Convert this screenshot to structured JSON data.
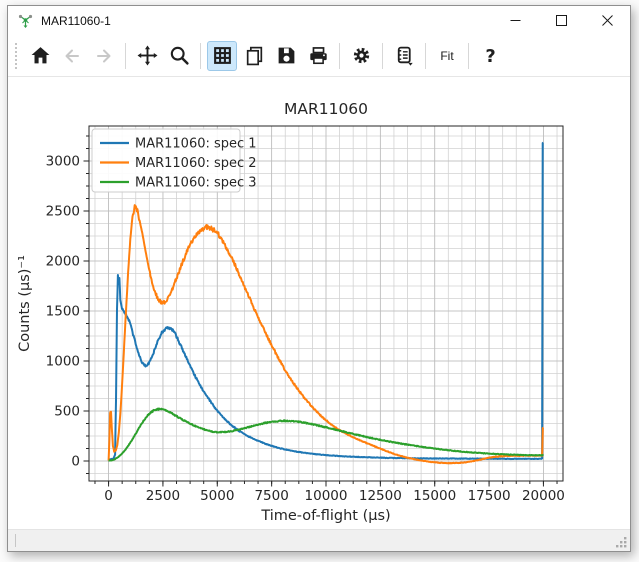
{
  "window": {
    "title": "MAR11060-1",
    "icon": "mantid-logo-icon",
    "controls": [
      {
        "name": "minimize",
        "icon": "minimize-icon"
      },
      {
        "name": "maximize",
        "icon": "maximize-icon"
      },
      {
        "name": "close",
        "icon": "close-icon"
      }
    ]
  },
  "toolbar": {
    "items": [
      {
        "type": "button",
        "name": "home",
        "icon": "home-icon",
        "enabled": true
      },
      {
        "type": "button",
        "name": "back",
        "icon": "back-arrow-icon",
        "enabled": false
      },
      {
        "type": "button",
        "name": "forward",
        "icon": "forward-arrow-icon",
        "enabled": false
      },
      {
        "type": "separator"
      },
      {
        "type": "button",
        "name": "pan",
        "icon": "pan-icon",
        "enabled": true
      },
      {
        "type": "button",
        "name": "zoom",
        "icon": "zoom-icon",
        "enabled": true
      },
      {
        "type": "separator"
      },
      {
        "type": "button",
        "name": "grid-toggle",
        "icon": "grid-icon",
        "enabled": true,
        "active": true
      },
      {
        "type": "button",
        "name": "copy",
        "icon": "copy-icon",
        "enabled": true
      },
      {
        "type": "button",
        "name": "save",
        "icon": "save-icon",
        "enabled": true
      },
      {
        "type": "button",
        "name": "print",
        "icon": "print-icon",
        "enabled": true
      },
      {
        "type": "separator"
      },
      {
        "type": "button",
        "name": "settings",
        "icon": "gear-icon",
        "enabled": true
      },
      {
        "type": "separator"
      },
      {
        "type": "button",
        "name": "generate-script",
        "icon": "script-icon",
        "enabled": true,
        "has_dropdown": true
      },
      {
        "type": "separator"
      },
      {
        "type": "button",
        "name": "fit",
        "label": "Fit",
        "enabled": true
      },
      {
        "type": "separator"
      },
      {
        "type": "button",
        "name": "help",
        "icon": "question-icon",
        "enabled": true
      }
    ]
  },
  "statusbar": {
    "grip_icon": "resize-grip-icon"
  },
  "chart_data": {
    "type": "line",
    "title": "MAR11060",
    "xlabel": "Time-of-flight (μs)",
    "ylabel": "Counts (μs)⁻¹",
    "xlim": [
      -900,
      20900
    ],
    "ylim": [
      -200,
      3350
    ],
    "xticks": [
      0,
      2500,
      5000,
      7500,
      10000,
      12500,
      15000,
      17500,
      20000
    ],
    "yticks": [
      0,
      500,
      1000,
      1500,
      2000,
      2500,
      3000
    ],
    "x_minor_step": 625,
    "y_minor_step": 125,
    "grid": true,
    "legend": {
      "position": "upper-left",
      "entries": [
        "MAR11060: spec 1",
        "MAR11060: spec 2",
        "MAR11060: spec 3"
      ]
    },
    "series": [
      {
        "name": "MAR11060: spec 1",
        "color": "#1f77b4",
        "points": [
          [
            0,
            15
          ],
          [
            200,
            20
          ],
          [
            300,
            60
          ],
          [
            340,
            600
          ],
          [
            390,
            1520
          ],
          [
            430,
            1860
          ],
          [
            465,
            1770
          ],
          [
            500,
            1830
          ],
          [
            540,
            1610
          ],
          [
            620,
            1520
          ],
          [
            700,
            1490
          ],
          [
            800,
            1465
          ],
          [
            900,
            1430
          ],
          [
            1000,
            1370
          ],
          [
            1100,
            1290
          ],
          [
            1250,
            1165
          ],
          [
            1400,
            1060
          ],
          [
            1550,
            985
          ],
          [
            1700,
            952
          ],
          [
            1850,
            975
          ],
          [
            2000,
            1040
          ],
          [
            2150,
            1130
          ],
          [
            2300,
            1220
          ],
          [
            2450,
            1282
          ],
          [
            2600,
            1318
          ],
          [
            2750,
            1332
          ],
          [
            2900,
            1320
          ],
          [
            3050,
            1278
          ],
          [
            3200,
            1212
          ],
          [
            3400,
            1118
          ],
          [
            3600,
            1020
          ],
          [
            3800,
            928
          ],
          [
            4000,
            840
          ],
          [
            4250,
            742
          ],
          [
            4500,
            655
          ],
          [
            4750,
            575
          ],
          [
            5000,
            500
          ],
          [
            5300,
            428
          ],
          [
            5600,
            368
          ],
          [
            6000,
            300
          ],
          [
            6400,
            250
          ],
          [
            6800,
            208
          ],
          [
            7200,
            173
          ],
          [
            7600,
            144
          ],
          [
            8000,
            121
          ],
          [
            8500,
            99
          ],
          [
            9000,
            82
          ],
          [
            9500,
            69
          ],
          [
            10000,
            59
          ],
          [
            10500,
            51
          ],
          [
            11000,
            45
          ],
          [
            11500,
            40
          ],
          [
            12000,
            36
          ],
          [
            12500,
            33
          ],
          [
            13000,
            30
          ],
          [
            14000,
            27
          ],
          [
            15000,
            25
          ],
          [
            16000,
            24
          ],
          [
            17000,
            23
          ],
          [
            18000,
            22
          ],
          [
            19000,
            22
          ],
          [
            19940,
            22
          ],
          [
            19965,
            3180
          ],
          [
            20000,
            3185
          ]
        ]
      },
      {
        "name": "MAR11060: spec 2",
        "color": "#ff7f0e",
        "points": [
          [
            0,
            5
          ],
          [
            40,
            210
          ],
          [
            70,
            480
          ],
          [
            110,
            490
          ],
          [
            150,
            330
          ],
          [
            200,
            150
          ],
          [
            260,
            95
          ],
          [
            330,
            105
          ],
          [
            400,
            162
          ],
          [
            470,
            282
          ],
          [
            540,
            470
          ],
          [
            620,
            750
          ],
          [
            700,
            1080
          ],
          [
            800,
            1500
          ],
          [
            900,
            1885
          ],
          [
            1000,
            2220
          ],
          [
            1100,
            2445
          ],
          [
            1200,
            2540
          ],
          [
            1300,
            2520
          ],
          [
            1400,
            2430
          ],
          [
            1550,
            2280
          ],
          [
            1700,
            2100
          ],
          [
            1850,
            1930
          ],
          [
            2000,
            1790
          ],
          [
            2150,
            1680
          ],
          [
            2300,
            1612
          ],
          [
            2450,
            1580
          ],
          [
            2600,
            1586
          ],
          [
            2750,
            1630
          ],
          [
            2900,
            1700
          ],
          [
            3100,
            1812
          ],
          [
            3300,
            1930
          ],
          [
            3500,
            2042
          ],
          [
            3700,
            2140
          ],
          [
            3900,
            2222
          ],
          [
            4100,
            2284
          ],
          [
            4300,
            2320
          ],
          [
            4500,
            2336
          ],
          [
            4700,
            2330
          ],
          [
            4900,
            2302
          ],
          [
            5100,
            2252
          ],
          [
            5300,
            2182
          ],
          [
            5500,
            2100
          ],
          [
            5750,
            1990
          ],
          [
            6000,
            1868
          ],
          [
            6300,
            1720
          ],
          [
            6600,
            1572
          ],
          [
            7000,
            1380
          ],
          [
            7400,
            1200
          ],
          [
            7800,
            1032
          ],
          [
            8200,
            880
          ],
          [
            8600,
            748
          ],
          [
            9000,
            632
          ],
          [
            9400,
            532
          ],
          [
            9800,
            445
          ],
          [
            10200,
            372
          ],
          [
            10700,
            298
          ],
          [
            11200,
            242
          ],
          [
            11700,
            194
          ],
          [
            12200,
            150
          ],
          [
            12700,
            106
          ],
          [
            13200,
            66
          ],
          [
            13700,
            34
          ],
          [
            14200,
            12
          ],
          [
            14700,
            -6
          ],
          [
            15200,
            -18
          ],
          [
            15700,
            -22
          ],
          [
            16200,
            -18
          ],
          [
            16700,
            -5
          ],
          [
            17100,
            14
          ],
          [
            17500,
            34
          ],
          [
            18000,
            47
          ],
          [
            18500,
            52
          ],
          [
            19000,
            53
          ],
          [
            19500,
            54
          ],
          [
            19940,
            55
          ],
          [
            19970,
            330
          ],
          [
            20000,
            335
          ]
        ]
      },
      {
        "name": "MAR11060: spec 3",
        "color": "#2ca02c",
        "points": [
          [
            0,
            5
          ],
          [
            150,
            8
          ],
          [
            300,
            20
          ],
          [
            450,
            40
          ],
          [
            600,
            70
          ],
          [
            750,
            106
          ],
          [
            900,
            150
          ],
          [
            1050,
            200
          ],
          [
            1200,
            255
          ],
          [
            1350,
            312
          ],
          [
            1500,
            366
          ],
          [
            1650,
            415
          ],
          [
            1800,
            456
          ],
          [
            1950,
            488
          ],
          [
            2100,
            508
          ],
          [
            2250,
            518
          ],
          [
            2400,
            518
          ],
          [
            2550,
            512
          ],
          [
            2700,
            500
          ],
          [
            2900,
            478
          ],
          [
            3100,
            452
          ],
          [
            3300,
            425
          ],
          [
            3600,
            390
          ],
          [
            3900,
            357
          ],
          [
            4200,
            330
          ],
          [
            4500,
            308
          ],
          [
            4800,
            293
          ],
          [
            5100,
            287
          ],
          [
            5400,
            290
          ],
          [
            5700,
            300
          ],
          [
            6000,
            315
          ],
          [
            6400,
            337
          ],
          [
            6800,
            360
          ],
          [
            7200,
            380
          ],
          [
            7600,
            394
          ],
          [
            8000,
            402
          ],
          [
            8400,
            400
          ],
          [
            8800,
            390
          ],
          [
            9200,
            376
          ],
          [
            9600,
            357
          ],
          [
            10000,
            336
          ],
          [
            10500,
            310
          ],
          [
            11000,
            283
          ],
          [
            11500,
            258
          ],
          [
            12000,
            234
          ],
          [
            12500,
            212
          ],
          [
            13000,
            191
          ],
          [
            13500,
            172
          ],
          [
            14000,
            155
          ],
          [
            14500,
            139
          ],
          [
            15000,
            124
          ],
          [
            15500,
            111
          ],
          [
            16000,
            99
          ],
          [
            16500,
            89
          ],
          [
            17000,
            81
          ],
          [
            17500,
            74
          ],
          [
            18000,
            68
          ],
          [
            18500,
            63
          ],
          [
            19000,
            60
          ],
          [
            19500,
            58
          ],
          [
            20000,
            57
          ]
        ]
      }
    ]
  }
}
